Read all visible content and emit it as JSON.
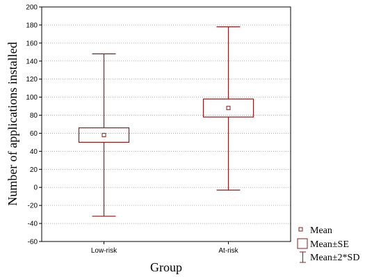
{
  "chart_data": {
    "type": "box",
    "xlabel": "Group",
    "ylabel": "Number of applications installed",
    "ylim": [
      -60,
      200
    ],
    "yticks": [
      -60,
      -40,
      -20,
      0,
      20,
      40,
      60,
      80,
      100,
      120,
      140,
      160,
      180,
      200
    ],
    "grid": true,
    "color": "#8b1a1a",
    "categories": [
      "Low-risk",
      "At-risk"
    ],
    "series": [
      {
        "group": "Low-risk",
        "mean": 58,
        "se_low": 50,
        "se_high": 66,
        "sd2_low": -32,
        "sd2_high": 148
      },
      {
        "group": "At-risk",
        "mean": 88,
        "se_low": 78,
        "se_high": 98,
        "sd2_low": -3,
        "sd2_high": 178
      }
    ],
    "legend": {
      "position": "bottom-right",
      "items": [
        "Mean",
        "Mean±SE",
        "Mean±2*SD"
      ]
    }
  }
}
